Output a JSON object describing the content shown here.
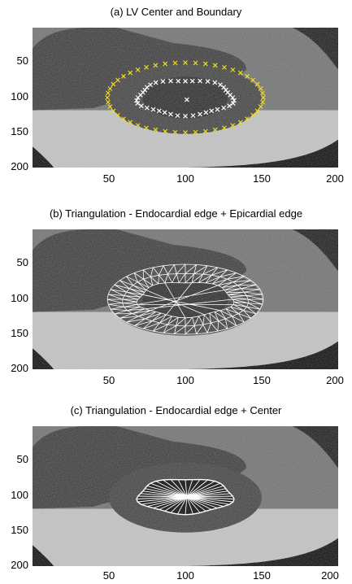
{
  "figure": {
    "panels": [
      {
        "title": "(a) LV Center and Boundary",
        "yticks": [
          "50",
          "100",
          "150",
          "200"
        ],
        "xticks": [
          "50",
          "100",
          "150",
          "200"
        ],
        "overlay": "boundary"
      },
      {
        "title": "(b) Triangulation - Endocardial edge + Epicardial edge",
        "yticks": [
          "50",
          "100",
          "150",
          "200"
        ],
        "xticks": [
          "50",
          "100",
          "150",
          "200"
        ],
        "overlay": "ring-mesh"
      },
      {
        "title": "(c) Triangulation - Endocardial edge + Center",
        "yticks": [
          "50",
          "100",
          "150",
          "200"
        ],
        "xticks": [
          "50",
          "100",
          "150",
          "200"
        ],
        "overlay": "fan"
      }
    ],
    "colors": {
      "epicardial_marker": "#f0e020",
      "endocardial_marker": "#ffffff",
      "mesh_line": "#ffffff"
    }
  }
}
